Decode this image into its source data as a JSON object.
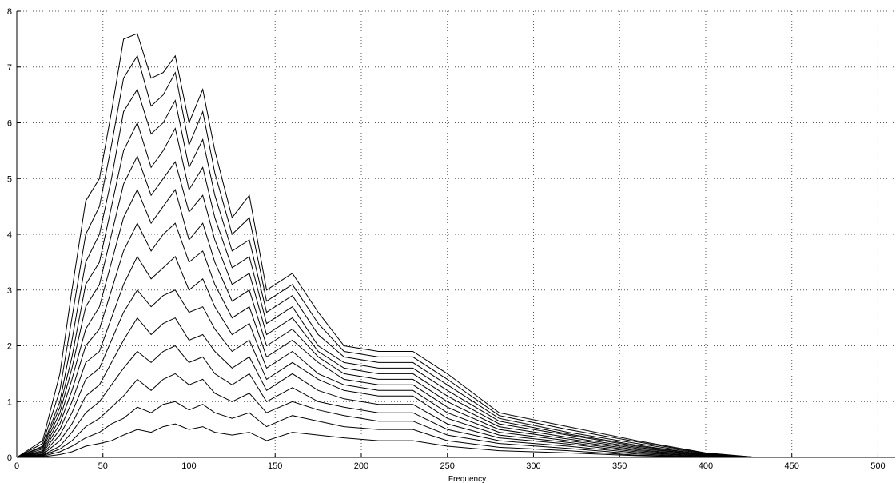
{
  "chart_data": {
    "type": "line",
    "title": "",
    "xlabel": "Frequency",
    "ylabel": "",
    "xlim": [
      0,
      510
    ],
    "ylim": [
      0,
      8
    ],
    "xticks": [
      0,
      50,
      100,
      150,
      200,
      250,
      300,
      350,
      400,
      450,
      500
    ],
    "yticks": [
      0,
      1,
      2,
      3,
      4,
      5,
      6,
      7,
      8
    ],
    "grid": true,
    "legend": "none",
    "line_color": "#000000",
    "description_of_series": "waterfall of many spectra",
    "series": [
      {
        "x": [
          0,
          15,
          25,
          32,
          40,
          48,
          55,
          62,
          70,
          78,
          85,
          92,
          100,
          108,
          115,
          125,
          135,
          145,
          160,
          175,
          190,
          210,
          230,
          250,
          280,
          320,
          360,
          400,
          430
        ],
        "values": [
          0,
          0.3,
          1.5,
          3.0,
          4.6,
          5.0,
          6.2,
          7.5,
          7.6,
          6.8,
          6.9,
          7.2,
          6.0,
          6.6,
          5.5,
          4.3,
          4.7,
          3.0,
          3.3,
          2.6,
          2.0,
          1.9,
          1.9,
          1.5,
          0.8,
          0.55,
          0.3,
          0.08,
          0
        ]
      },
      {
        "x": [
          0,
          15,
          25,
          32,
          40,
          48,
          55,
          62,
          70,
          78,
          85,
          92,
          100,
          108,
          115,
          125,
          135,
          145,
          160,
          175,
          190,
          210,
          230,
          250,
          280,
          320,
          360,
          400,
          430
        ],
        "values": [
          0,
          0.25,
          1.2,
          2.5,
          4.0,
          4.5,
          5.6,
          6.8,
          7.2,
          6.3,
          6.5,
          6.9,
          5.6,
          6.2,
          5.1,
          4.0,
          4.3,
          2.8,
          3.1,
          2.4,
          1.9,
          1.8,
          1.8,
          1.4,
          0.75,
          0.5,
          0.28,
          0.07,
          0
        ]
      },
      {
        "x": [
          0,
          15,
          25,
          32,
          40,
          48,
          55,
          62,
          70,
          78,
          85,
          92,
          100,
          108,
          115,
          125,
          135,
          145,
          160,
          175,
          190,
          210,
          230,
          250,
          280,
          320,
          360,
          400,
          430
        ],
        "values": [
          0,
          0.2,
          1.0,
          2.1,
          3.5,
          4.0,
          5.0,
          6.2,
          6.6,
          5.8,
          6.0,
          6.4,
          5.2,
          5.7,
          4.7,
          3.7,
          3.9,
          2.6,
          2.9,
          2.2,
          1.8,
          1.7,
          1.7,
          1.3,
          0.7,
          0.45,
          0.25,
          0.06,
          0
        ]
      },
      {
        "x": [
          0,
          15,
          25,
          32,
          40,
          48,
          55,
          62,
          70,
          78,
          85,
          92,
          100,
          108,
          115,
          125,
          135,
          145,
          160,
          175,
          190,
          210,
          230,
          250,
          280,
          320,
          360,
          400,
          430
        ],
        "values": [
          0,
          0.18,
          0.9,
          1.8,
          3.1,
          3.5,
          4.5,
          5.5,
          6.0,
          5.2,
          5.5,
          5.9,
          4.8,
          5.2,
          4.3,
          3.4,
          3.6,
          2.4,
          2.7,
          2.0,
          1.7,
          1.6,
          1.6,
          1.2,
          0.65,
          0.42,
          0.22,
          0.05,
          0
        ]
      },
      {
        "x": [
          0,
          15,
          25,
          32,
          40,
          48,
          55,
          62,
          70,
          78,
          85,
          92,
          100,
          108,
          115,
          125,
          135,
          145,
          160,
          175,
          190,
          210,
          230,
          250,
          280,
          320,
          360,
          400,
          430
        ],
        "values": [
          0,
          0.15,
          0.8,
          1.6,
          2.7,
          3.1,
          4.0,
          4.9,
          5.4,
          4.7,
          5.0,
          5.3,
          4.4,
          4.7,
          3.9,
          3.1,
          3.3,
          2.2,
          2.5,
          1.9,
          1.6,
          1.5,
          1.5,
          1.1,
          0.6,
          0.4,
          0.2,
          0.05,
          0
        ]
      },
      {
        "x": [
          0,
          15,
          25,
          32,
          40,
          48,
          55,
          62,
          70,
          78,
          85,
          92,
          100,
          108,
          115,
          125,
          135,
          145,
          160,
          175,
          190,
          210,
          230,
          250,
          280,
          320,
          360,
          400,
          430
        ],
        "values": [
          0,
          0.12,
          0.7,
          1.4,
          2.3,
          2.7,
          3.5,
          4.3,
          4.8,
          4.2,
          4.5,
          4.8,
          3.9,
          4.2,
          3.5,
          2.8,
          3.0,
          2.0,
          2.3,
          1.8,
          1.5,
          1.4,
          1.4,
          1.0,
          0.55,
          0.36,
          0.18,
          0.04,
          0
        ]
      },
      {
        "x": [
          0,
          15,
          25,
          32,
          40,
          48,
          55,
          62,
          70,
          78,
          85,
          92,
          100,
          108,
          115,
          125,
          135,
          145,
          160,
          175,
          190,
          210,
          230,
          250,
          280,
          320,
          360,
          400,
          430
        ],
        "values": [
          0,
          0.1,
          0.6,
          1.2,
          2.0,
          2.3,
          3.0,
          3.7,
          4.2,
          3.7,
          4.0,
          4.2,
          3.5,
          3.7,
          3.1,
          2.5,
          2.7,
          1.8,
          2.1,
          1.7,
          1.4,
          1.3,
          1.3,
          0.9,
          0.5,
          0.33,
          0.16,
          0.04,
          0
        ]
      },
      {
        "x": [
          0,
          15,
          25,
          32,
          40,
          48,
          55,
          62,
          70,
          78,
          85,
          92,
          100,
          108,
          115,
          125,
          135,
          145,
          160,
          175,
          190,
          210,
          230,
          250,
          280,
          320,
          360,
          400,
          430
        ],
        "values": [
          0,
          0.08,
          0.5,
          1.0,
          1.7,
          1.9,
          2.5,
          3.1,
          3.6,
          3.2,
          3.4,
          3.6,
          3.0,
          3.2,
          2.7,
          2.2,
          2.4,
          1.6,
          1.9,
          1.5,
          1.3,
          1.2,
          1.2,
          0.8,
          0.45,
          0.3,
          0.14,
          0.03,
          0
        ]
      },
      {
        "x": [
          0,
          15,
          25,
          32,
          40,
          48,
          55,
          62,
          70,
          78,
          85,
          92,
          100,
          108,
          115,
          125,
          135,
          145,
          160,
          175,
          190,
          210,
          230,
          250,
          280,
          320,
          360,
          400,
          430
        ],
        "values": [
          0,
          0.06,
          0.4,
          0.8,
          1.4,
          1.6,
          2.1,
          2.6,
          3.0,
          2.7,
          2.9,
          3.0,
          2.6,
          2.7,
          2.3,
          1.9,
          2.1,
          1.4,
          1.7,
          1.4,
          1.2,
          1.1,
          1.1,
          0.7,
          0.4,
          0.27,
          0.12,
          0.03,
          0
        ]
      },
      {
        "x": [
          0,
          15,
          25,
          32,
          40,
          48,
          55,
          62,
          70,
          78,
          85,
          92,
          100,
          108,
          115,
          125,
          135,
          145,
          160,
          175,
          190,
          210,
          230,
          250,
          280,
          320,
          360,
          400,
          430
        ],
        "values": [
          0,
          0.05,
          0.3,
          0.6,
          1.1,
          1.3,
          1.7,
          2.1,
          2.5,
          2.2,
          2.4,
          2.5,
          2.1,
          2.2,
          1.9,
          1.6,
          1.8,
          1.2,
          1.5,
          1.2,
          1.05,
          0.95,
          0.95,
          0.6,
          0.35,
          0.24,
          0.1,
          0.02,
          0
        ]
      },
      {
        "x": [
          0,
          15,
          25,
          32,
          40,
          48,
          55,
          62,
          70,
          78,
          85,
          92,
          100,
          108,
          115,
          125,
          135,
          145,
          160,
          175,
          190,
          210,
          230,
          250,
          280,
          320,
          360,
          400,
          430
        ],
        "values": [
          0,
          0.04,
          0.2,
          0.45,
          0.8,
          1.0,
          1.3,
          1.6,
          1.9,
          1.7,
          1.9,
          2.0,
          1.7,
          1.8,
          1.5,
          1.3,
          1.5,
          1.0,
          1.25,
          1.0,
          0.9,
          0.8,
          0.8,
          0.5,
          0.3,
          0.2,
          0.08,
          0.02,
          0
        ]
      },
      {
        "x": [
          0,
          15,
          25,
          32,
          40,
          48,
          55,
          62,
          70,
          78,
          85,
          92,
          100,
          108,
          115,
          125,
          135,
          145,
          160,
          175,
          190,
          210,
          230,
          250,
          280,
          320,
          360,
          400,
          430
        ],
        "values": [
          0,
          0.03,
          0.15,
          0.3,
          0.55,
          0.7,
          0.9,
          1.1,
          1.4,
          1.2,
          1.4,
          1.5,
          1.3,
          1.4,
          1.15,
          1.0,
          1.15,
          0.8,
          1.0,
          0.85,
          0.75,
          0.65,
          0.65,
          0.4,
          0.25,
          0.16,
          0.06,
          0.01,
          0
        ]
      },
      {
        "x": [
          0,
          15,
          25,
          32,
          40,
          48,
          55,
          62,
          70,
          78,
          85,
          92,
          100,
          108,
          115,
          125,
          135,
          145,
          160,
          175,
          190,
          210,
          230,
          250,
          280,
          320,
          360,
          400,
          430
        ],
        "values": [
          0,
          0.02,
          0.1,
          0.2,
          0.35,
          0.45,
          0.6,
          0.7,
          0.9,
          0.8,
          0.95,
          1.0,
          0.85,
          0.95,
          0.8,
          0.7,
          0.8,
          0.55,
          0.75,
          0.65,
          0.55,
          0.5,
          0.5,
          0.3,
          0.18,
          0.12,
          0.04,
          0.01,
          0
        ]
      },
      {
        "x": [
          0,
          15,
          25,
          32,
          40,
          48,
          55,
          62,
          70,
          78,
          85,
          92,
          100,
          108,
          115,
          125,
          135,
          145,
          160,
          175,
          190,
          210,
          230,
          250,
          280,
          320,
          360,
          400,
          430
        ],
        "values": [
          0,
          0.01,
          0.05,
          0.1,
          0.2,
          0.25,
          0.3,
          0.4,
          0.5,
          0.45,
          0.55,
          0.6,
          0.5,
          0.55,
          0.45,
          0.4,
          0.45,
          0.3,
          0.45,
          0.4,
          0.35,
          0.3,
          0.3,
          0.2,
          0.12,
          0.08,
          0.03,
          0.0,
          0
        ]
      }
    ]
  }
}
